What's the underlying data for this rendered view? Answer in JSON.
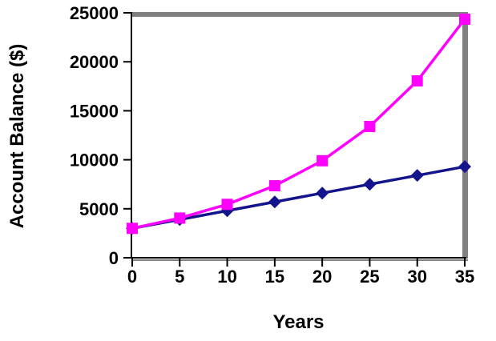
{
  "chart_data": {
    "type": "line",
    "title": "",
    "xlabel": "Years",
    "ylabel": "Account Balance ($)",
    "x": [
      0,
      5,
      10,
      15,
      20,
      25,
      30,
      35
    ],
    "series": [
      {
        "name": "navy-diamonds-linear-growth",
        "marker": "diamond",
        "color": "#14148C",
        "values": [
          3000,
          3900,
          4800,
          5700,
          6600,
          7500,
          8400,
          9300
        ]
      },
      {
        "name": "magenta-squares-exponential-growth",
        "marker": "square",
        "color": "#FF00FF",
        "values": [
          3000,
          4050,
          5450,
          7350,
          9900,
          13400,
          18050,
          24350
        ]
      }
    ],
    "xlim": [
      0,
      35
    ],
    "ylim": [
      0,
      25000
    ],
    "xticks": [
      0,
      5,
      10,
      15,
      20,
      25,
      30,
      35
    ],
    "yticks": [
      0,
      5000,
      10000,
      15000,
      20000,
      25000
    ],
    "grid": false,
    "legend": "none"
  },
  "colors": {
    "background": "#FFFFFF",
    "axis_line": "#000000",
    "tick_label": "#000000",
    "plot_shadow_border": "#808080",
    "series_magenta": "#FF00FF",
    "series_navy": "#14148C"
  }
}
